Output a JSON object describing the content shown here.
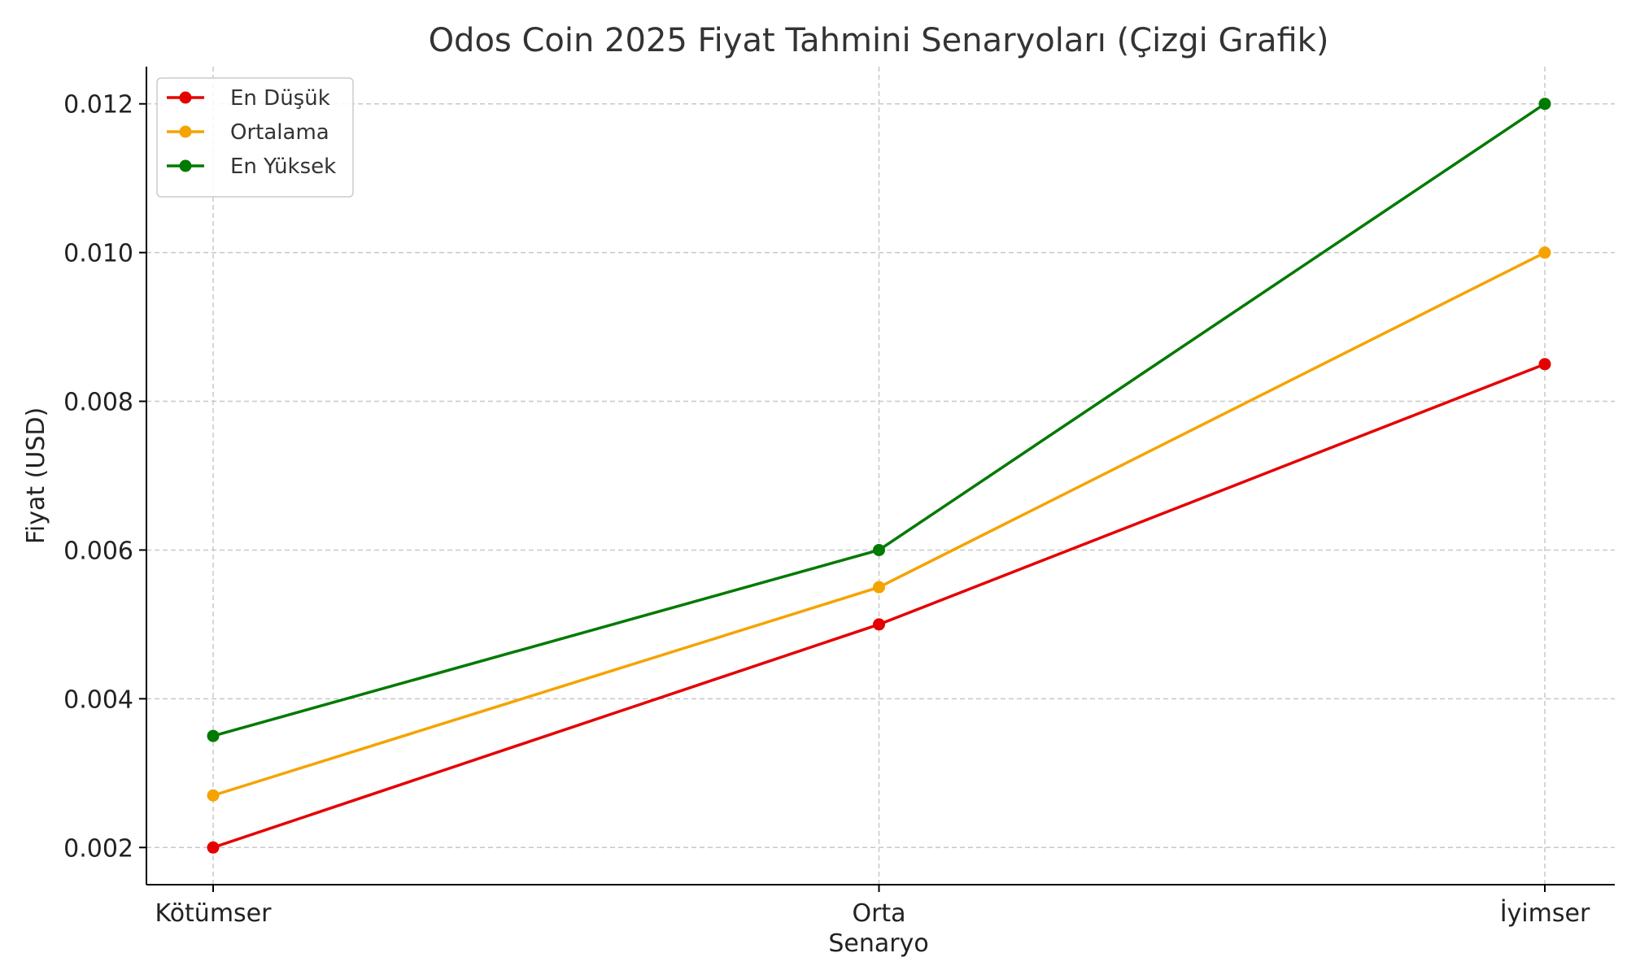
{
  "chart_data": {
    "type": "line",
    "title": "Odos Coin 2025 Fiyat Tahmini Senaryoları (Çizgi Grafik)",
    "xlabel": "Senaryo",
    "ylabel": "Fiyat (USD)",
    "categories": [
      "Kötümser",
      "Orta",
      "İyimser"
    ],
    "series": [
      {
        "name": "En Düşük",
        "color": "#e50000",
        "values": [
          0.002,
          0.005,
          0.0085
        ]
      },
      {
        "name": "Ortalama",
        "color": "#f5a300",
        "values": [
          0.0027,
          0.0055,
          0.01
        ]
      },
      {
        "name": "En Yüksek",
        "color": "#007a00",
        "values": [
          0.0035,
          0.006,
          0.012
        ]
      }
    ],
    "yticks": [
      "0.002",
      "0.004",
      "0.006",
      "0.008",
      "0.010",
      "0.012"
    ],
    "ylim": [
      0.0015,
      0.0125
    ],
    "grid": true,
    "legend_position": "top-left",
    "marker": "circle"
  }
}
